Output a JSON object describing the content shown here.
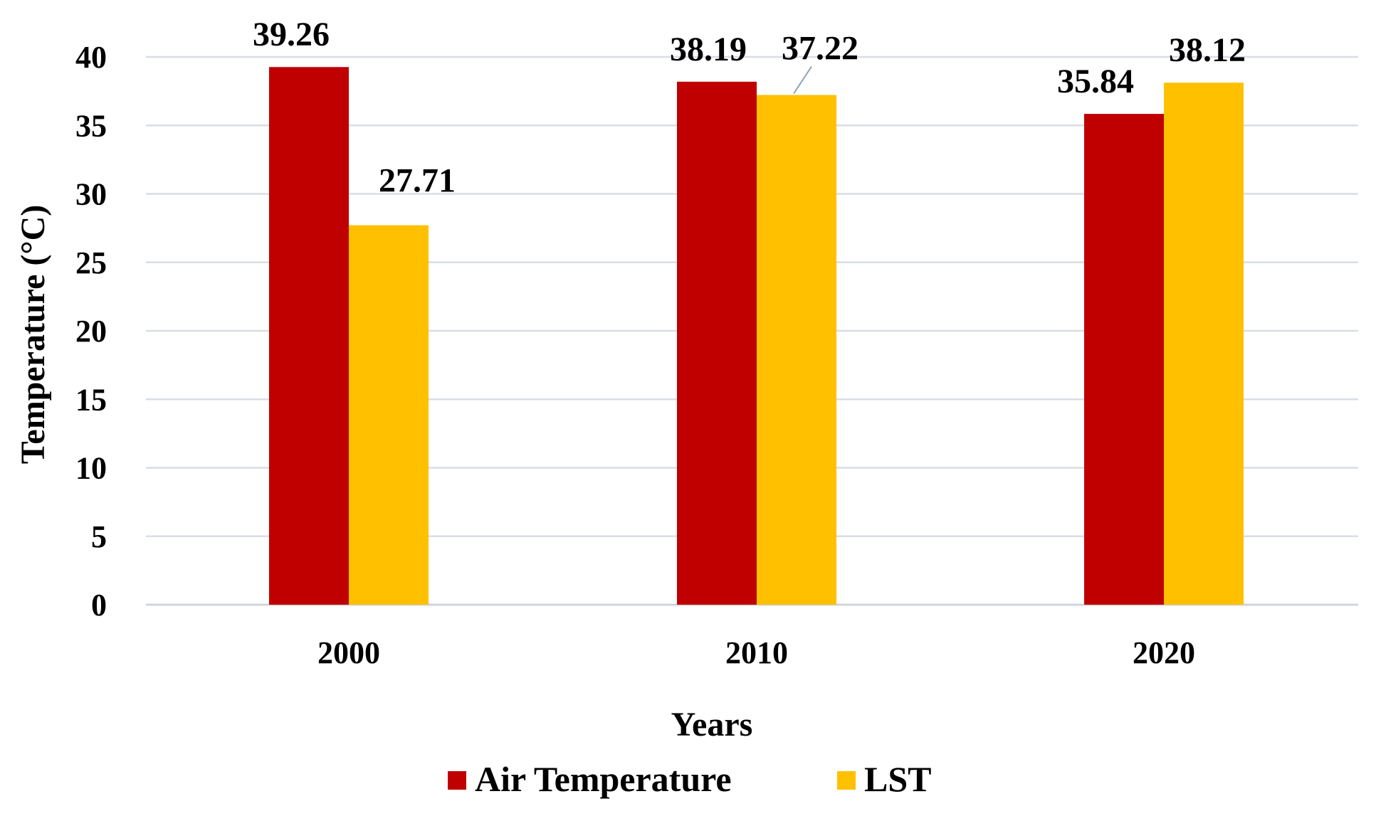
{
  "chart_data": {
    "type": "bar",
    "title": "",
    "xlabel": "Years",
    "ylabel": "Temperature (°C)",
    "categories": [
      "2000",
      "2010",
      "2020"
    ],
    "series": [
      {
        "name": "Air Temperature",
        "color": "#c00000",
        "values": [
          39.26,
          38.19,
          35.84
        ],
        "labels": [
          "39.26",
          "38.19",
          "35.84"
        ]
      },
      {
        "name": "LST",
        "color": "#ffc000",
        "values": [
          27.71,
          37.22,
          38.12
        ],
        "labels": [
          "27.71",
          "37.22",
          "38.12"
        ]
      }
    ],
    "ylim": [
      0,
      40
    ],
    "yticks": [
      "0",
      "5",
      "10",
      "15",
      "20",
      "25",
      "30",
      "35",
      "40"
    ],
    "grid": true,
    "legend_position": "bottom-center"
  }
}
